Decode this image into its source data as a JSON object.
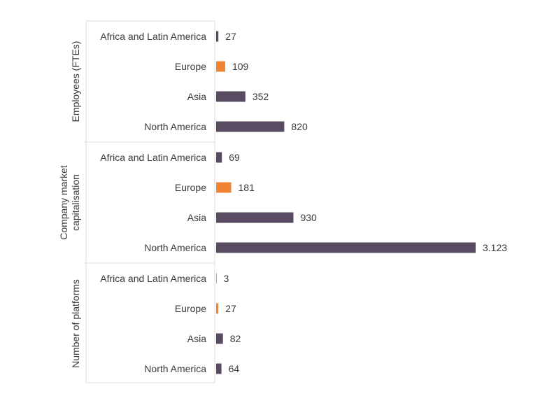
{
  "chart_data": {
    "type": "bar",
    "orientation": "horizontal",
    "grid": false,
    "legend": "none",
    "colors": {
      "default": "#594c62",
      "highlight": "#ef8432",
      "highlight_category": "Europe"
    },
    "groups": [
      {
        "label_lines": [
          "Employees (FTEs)"
        ],
        "categories": [
          "Africa and Latin America",
          "Europe",
          "Asia",
          "North America"
        ],
        "values": [
          27,
          109,
          352,
          820
        ],
        "value_labels": [
          "27",
          "109",
          "352",
          "820"
        ]
      },
      {
        "label_lines": [
          "Company market",
          "capitalisation"
        ],
        "categories": [
          "Africa and Latin America",
          "Europe",
          "Asia",
          "North America"
        ],
        "values": [
          69,
          181,
          930,
          3123
        ],
        "value_labels": [
          "69",
          "181",
          "930",
          "3.123"
        ]
      },
      {
        "label_lines": [
          "Number of platforms"
        ],
        "categories": [
          "Africa and Latin America",
          "Europe",
          "Asia",
          "North America"
        ],
        "values": [
          3,
          27,
          82,
          64
        ],
        "value_labels": [
          "3",
          "27",
          "82",
          "64"
        ]
      }
    ]
  }
}
